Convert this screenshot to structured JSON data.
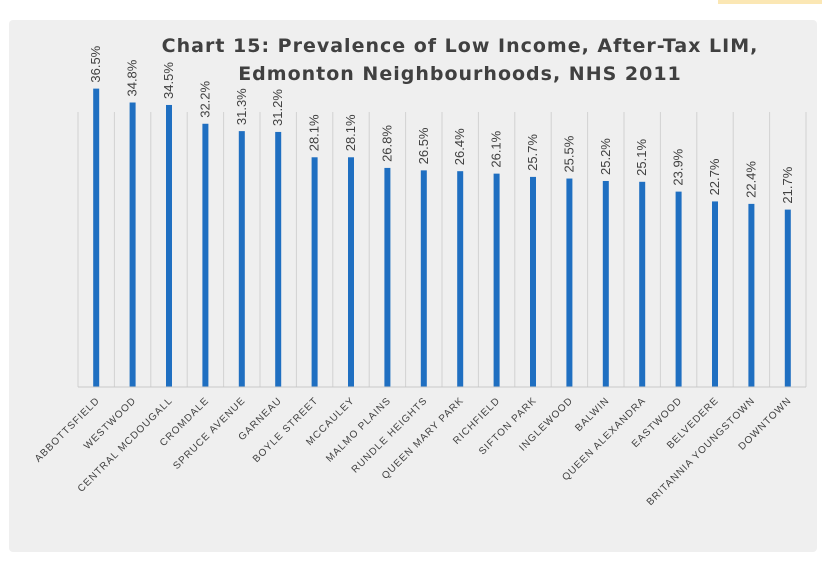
{
  "chart_data": {
    "type": "bar",
    "title": "Chart 15: Prevalence of Low Income, After-Tax LIM, Edmonton Neighbourhoods, NHS 2011",
    "title_lines": [
      "Chart 15: Prevalence of Low Income, After-Tax LIM,",
      "Edmonton Neighbourhoods, NHS 2011"
    ],
    "xlabel": "",
    "ylabel": "",
    "ylim": [
      0,
      40
    ],
    "grid": false,
    "legend": "none",
    "bar_color": "#1f6fc1",
    "categories": [
      "ABBOTTSFIELD",
      "WESTWOOD",
      "CENTRAL MCDOUGALL",
      "CROMDALE",
      "SPRUCE AVENUE",
      "GARNEAU",
      "BOYLE STREET",
      "MCCAULEY",
      "MALMO PLAINS",
      "RUNDLE HEIGHTS",
      "QUEEN MARY PARK",
      "RICHFIELD",
      "SIFTON PARK",
      "INGLEWOOD",
      "BALWIN",
      "QUEEN ALEXANDRA",
      "EASTWOOD",
      "BELVEDERE",
      "BRITANNIA YOUNGSTOWN",
      "DOWNTOWN"
    ],
    "values": [
      36.5,
      34.8,
      34.5,
      32.2,
      31.3,
      31.2,
      28.1,
      28.1,
      26.8,
      26.5,
      26.4,
      26.1,
      25.7,
      25.5,
      25.2,
      25.1,
      23.9,
      22.7,
      22.4,
      21.7
    ],
    "data_labels": [
      "36.5%",
      "34.8%",
      "34.5%",
      "32.2%",
      "31.3%",
      "31.2%",
      "28.1%",
      "28.1%",
      "26.8%",
      "26.5%",
      "26.4%",
      "26.1%",
      "25.7%",
      "25.5%",
      "25.2%",
      "25.1%",
      "23.9%",
      "22.7%",
      "22.4%",
      "21.7%"
    ]
  }
}
